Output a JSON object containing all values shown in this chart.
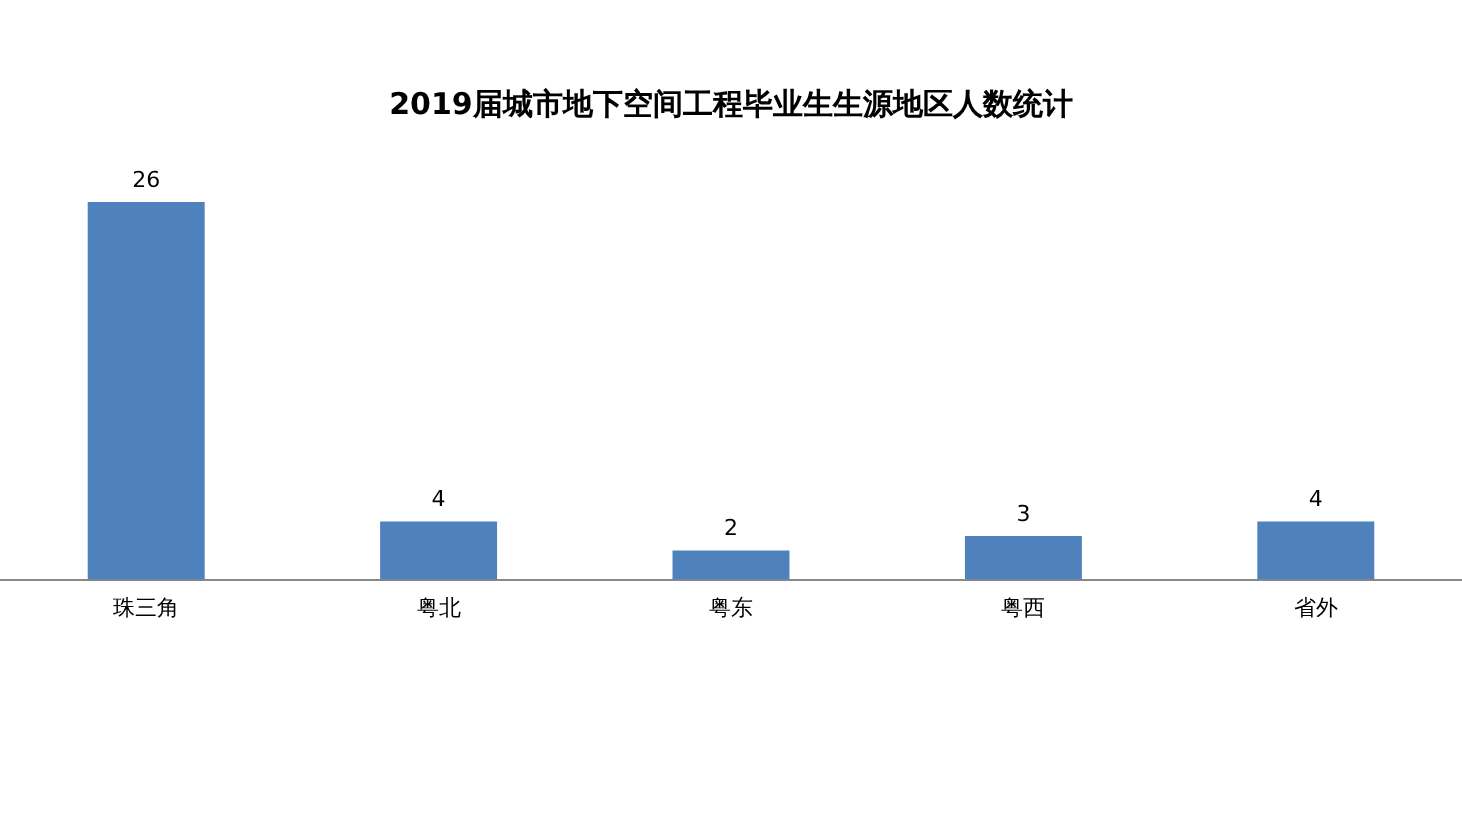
{
  "chart_data": {
    "type": "bar",
    "title": "2019届城市地下空间工程毕业生生源地区人数统计",
    "categories": [
      "珠三角",
      "粤北",
      "粤东",
      "粤西",
      "省外"
    ],
    "values": [
      26,
      4,
      2,
      3,
      4
    ],
    "color": "#4f81bd",
    "data_labels": true,
    "grid": false,
    "legend": false
  }
}
